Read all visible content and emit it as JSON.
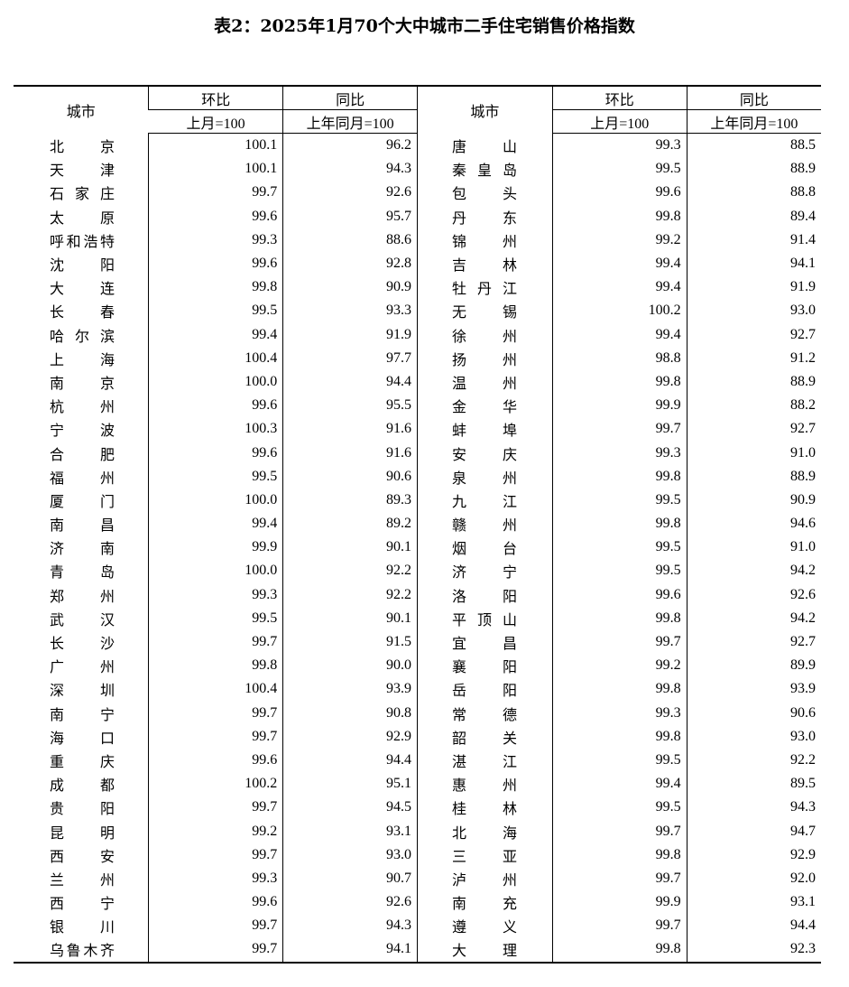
{
  "title": "表2：2025年1月70个大中城市二手住宅销售价格指数",
  "header": {
    "city": "城市",
    "mom": "环比",
    "yoy": "同比",
    "mom_base": "上月=100",
    "yoy_base": "上年同月=100"
  },
  "rows": [
    [
      [
        "北京",
        "100.1",
        "96.2"
      ],
      [
        "唐山",
        "99.3",
        "88.5"
      ]
    ],
    [
      [
        "天津",
        "100.1",
        "94.3"
      ],
      [
        "秦皇岛",
        "99.5",
        "88.9"
      ]
    ],
    [
      [
        "石家庄",
        "99.7",
        "92.6"
      ],
      [
        "包头",
        "99.6",
        "88.8"
      ]
    ],
    [
      [
        "太原",
        "99.6",
        "95.7"
      ],
      [
        "丹东",
        "99.8",
        "89.4"
      ]
    ],
    [
      [
        "呼和浩特",
        "99.3",
        "88.6"
      ],
      [
        "锦州",
        "99.2",
        "91.4"
      ]
    ],
    [
      [
        "沈阳",
        "99.6",
        "92.8"
      ],
      [
        "吉林",
        "99.4",
        "94.1"
      ]
    ],
    [
      [
        "大连",
        "99.8",
        "90.9"
      ],
      [
        "牡丹江",
        "99.4",
        "91.9"
      ]
    ],
    [
      [
        "长春",
        "99.5",
        "93.3"
      ],
      [
        "无锡",
        "100.2",
        "93.0"
      ]
    ],
    [
      [
        "哈尔滨",
        "99.4",
        "91.9"
      ],
      [
        "徐州",
        "99.4",
        "92.7"
      ]
    ],
    [
      [
        "上海",
        "100.4",
        "97.7"
      ],
      [
        "扬州",
        "98.8",
        "91.2"
      ]
    ],
    [
      [
        "南京",
        "100.0",
        "94.4"
      ],
      [
        "温州",
        "99.8",
        "88.9"
      ]
    ],
    [
      [
        "杭州",
        "99.6",
        "95.5"
      ],
      [
        "金华",
        "99.9",
        "88.2"
      ]
    ],
    [
      [
        "宁波",
        "100.3",
        "91.6"
      ],
      [
        "蚌埠",
        "99.7",
        "92.7"
      ]
    ],
    [
      [
        "合肥",
        "99.6",
        "91.6"
      ],
      [
        "安庆",
        "99.3",
        "91.0"
      ]
    ],
    [
      [
        "福州",
        "99.5",
        "90.6"
      ],
      [
        "泉州",
        "99.8",
        "88.9"
      ]
    ],
    [
      [
        "厦门",
        "100.0",
        "89.3"
      ],
      [
        "九江",
        "99.5",
        "90.9"
      ]
    ],
    [
      [
        "南昌",
        "99.4",
        "89.2"
      ],
      [
        "赣州",
        "99.8",
        "94.6"
      ]
    ],
    [
      [
        "济南",
        "99.9",
        "90.1"
      ],
      [
        "烟台",
        "99.5",
        "91.0"
      ]
    ],
    [
      [
        "青岛",
        "100.0",
        "92.2"
      ],
      [
        "济宁",
        "99.5",
        "94.2"
      ]
    ],
    [
      [
        "郑州",
        "99.3",
        "92.2"
      ],
      [
        "洛阳",
        "99.6",
        "92.6"
      ]
    ],
    [
      [
        "武汉",
        "99.5",
        "90.1"
      ],
      [
        "平顶山",
        "99.8",
        "94.2"
      ]
    ],
    [
      [
        "长沙",
        "99.7",
        "91.5"
      ],
      [
        "宜昌",
        "99.7",
        "92.7"
      ]
    ],
    [
      [
        "广州",
        "99.8",
        "90.0"
      ],
      [
        "襄阳",
        "99.2",
        "89.9"
      ]
    ],
    [
      [
        "深圳",
        "100.4",
        "93.9"
      ],
      [
        "岳阳",
        "99.8",
        "93.9"
      ]
    ],
    [
      [
        "南宁",
        "99.7",
        "90.8"
      ],
      [
        "常德",
        "99.3",
        "90.6"
      ]
    ],
    [
      [
        "海口",
        "99.7",
        "92.9"
      ],
      [
        "韶关",
        "99.8",
        "93.0"
      ]
    ],
    [
      [
        "重庆",
        "99.6",
        "94.4"
      ],
      [
        "湛江",
        "99.5",
        "92.2"
      ]
    ],
    [
      [
        "成都",
        "100.2",
        "95.1"
      ],
      [
        "惠州",
        "99.4",
        "89.5"
      ]
    ],
    [
      [
        "贵阳",
        "99.7",
        "94.5"
      ],
      [
        "桂林",
        "99.5",
        "94.3"
      ]
    ],
    [
      [
        "昆明",
        "99.2",
        "93.1"
      ],
      [
        "北海",
        "99.7",
        "94.7"
      ]
    ],
    [
      [
        "西安",
        "99.7",
        "93.0"
      ],
      [
        "三亚",
        "99.8",
        "92.9"
      ]
    ],
    [
      [
        "兰州",
        "99.3",
        "90.7"
      ],
      [
        "泸州",
        "99.7",
        "92.0"
      ]
    ],
    [
      [
        "西宁",
        "99.6",
        "92.6"
      ],
      [
        "南充",
        "99.9",
        "93.1"
      ]
    ],
    [
      [
        "银川",
        "99.7",
        "94.3"
      ],
      [
        "遵义",
        "99.7",
        "94.4"
      ]
    ],
    [
      [
        "乌鲁木齐",
        "99.7",
        "94.1"
      ],
      [
        "大理",
        "99.8",
        "92.3"
      ]
    ]
  ]
}
